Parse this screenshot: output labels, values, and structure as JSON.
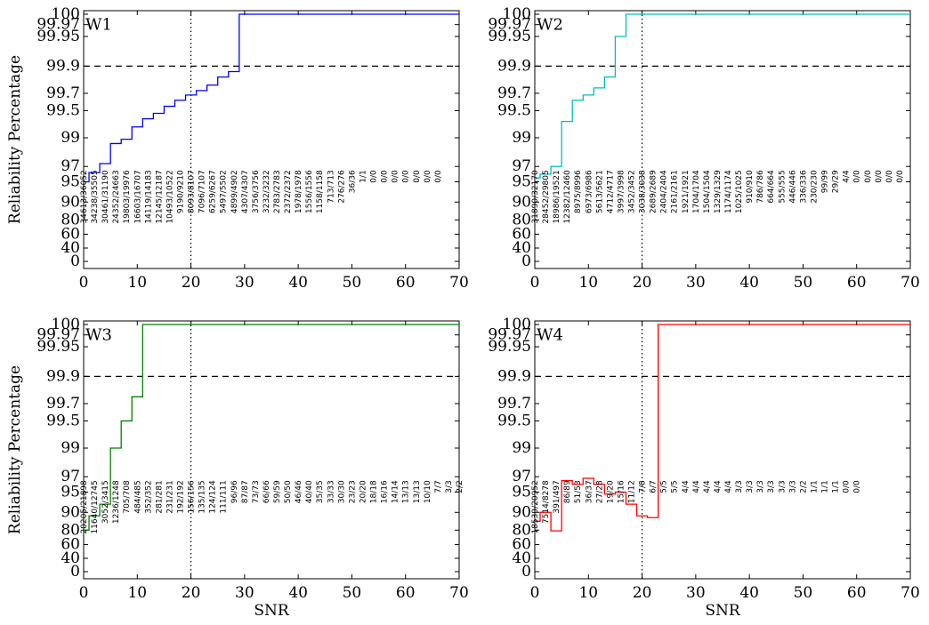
{
  "figure": {
    "ylabel": "Reliability Percentage",
    "xlabel": "SNR"
  },
  "chart_data": [
    {
      "type": "line",
      "title": "W1",
      "color": "#0000ff",
      "xlabel": "",
      "ylabel": "Reliability Percentage",
      "xlim": [
        0,
        70
      ],
      "xticks": [
        "0",
        "10",
        "20",
        "30",
        "40",
        "50",
        "60",
        "70"
      ],
      "yticks": [
        "0",
        "40",
        "60",
        "80",
        "90",
        "95",
        "97",
        "99",
        "99.5",
        "99.7",
        "99.9",
        "99.95",
        "99.97",
        "100"
      ],
      "threshold_y": 99.9,
      "vline_x": 20,
      "steps": [
        [
          0,
          95
        ],
        [
          1,
          96.2
        ],
        [
          3,
          97.2
        ],
        [
          5,
          98.6
        ],
        [
          7,
          98.9
        ],
        [
          9,
          99.2
        ],
        [
          11,
          99.35
        ],
        [
          13,
          99.45
        ],
        [
          15,
          99.55
        ],
        [
          17,
          99.62
        ],
        [
          19,
          99.68
        ],
        [
          21,
          99.72
        ],
        [
          23,
          99.76
        ],
        [
          25,
          99.82
        ],
        [
          27,
          99.86
        ],
        [
          29,
          100
        ],
        [
          70,
          100
        ]
      ],
      "counts": [
        "34613/36052",
        "34238/35505",
        "30461/31190",
        "24352/24663",
        "19803/19976",
        "16603/16707",
        "14119/14183",
        "12145/12187",
        "10493/10522",
        "9190/9210",
        "8093/8107",
        "7096/7107",
        "6259/6267",
        "5497/5502",
        "4899/4902",
        "4307/4307",
        "3756/3756",
        "3232/3232",
        "2783/2783",
        "2372/2372",
        "1978/1978",
        "1556/1556",
        "1158/1158",
        "713/713",
        "276/276",
        "36/36",
        "1/1",
        "0/0",
        "0/0",
        "0/0",
        "0/0",
        "0/0",
        "0/0",
        "0/0"
      ]
    },
    {
      "type": "line",
      "title": "W2",
      "color": "#00bfbf",
      "xlabel": "",
      "ylabel": "",
      "xlim": [
        0,
        70
      ],
      "xticks": [
        "0",
        "10",
        "20",
        "30",
        "40",
        "50",
        "60",
        "70"
      ],
      "yticks": [
        "0",
        "40",
        "60",
        "80",
        "90",
        "95",
        "97",
        "99",
        "99.5",
        "99.7",
        "99.9",
        "99.95",
        "99.97",
        "100"
      ],
      "threshold_y": 99.9,
      "vline_x": 20,
      "steps": [
        [
          0,
          95.5
        ],
        [
          1,
          96
        ],
        [
          3,
          97
        ],
        [
          5,
          99.3
        ],
        [
          7,
          99.62
        ],
        [
          9,
          99.68
        ],
        [
          11,
          99.74
        ],
        [
          13,
          99.82
        ],
        [
          15,
          99.95
        ],
        [
          17,
          100
        ],
        [
          70,
          100
        ]
      ],
      "counts": [
        "31890/32170",
        "28452/29805",
        "18986/19521",
        "12382/12460",
        "8975/8996",
        "6973/6986",
        "5613/5621",
        "4712/4717",
        "3997/3998",
        "3452/3452",
        "3038/3038",
        "2689/2689",
        "2404/2404",
        "2161/2161",
        "1921/1921",
        "1704/1704",
        "1504/1504",
        "1329/1329",
        "1174/1174",
        "1025/1025",
        "910/910",
        "786/786",
        "664/664",
        "555/555",
        "446/446",
        "336/336",
        "230/230",
        "99/99",
        "29/29",
        "4/4",
        "0/0",
        "0/0",
        "0/0",
        "0/0",
        "0/0"
      ]
    },
    {
      "type": "line",
      "title": "W3",
      "color": "#008000",
      "xlabel": "SNR",
      "ylabel": "Reliability Percentage",
      "xlim": [
        0,
        70
      ],
      "xticks": [
        "0",
        "10",
        "20",
        "30",
        "40",
        "50",
        "60",
        "70"
      ],
      "yticks": [
        "0",
        "40",
        "60",
        "80",
        "90",
        "95",
        "97",
        "99",
        "99.5",
        "99.7",
        "99.9",
        "99.95",
        "99.97",
        "100"
      ],
      "threshold_y": 99.9,
      "vline_x": 20,
      "steps": [
        [
          0,
          80
        ],
        [
          1,
          88
        ],
        [
          3,
          92
        ],
        [
          5,
          99
        ],
        [
          7,
          99.5
        ],
        [
          9,
          99.75
        ],
        [
          11,
          100
        ],
        [
          70,
          100
        ]
      ],
      "counts": [
        "20205/21898",
        "11640/12745",
        "3052/3415",
        "1236/1248",
        "705/708",
        "484/485",
        "352/352",
        "281/281",
        "231/231",
        "192/192",
        "156/156",
        "135/135",
        "124/124",
        "111/111",
        "96/96",
        "87/87",
        "73/73",
        "66/66",
        "59/59",
        "50/50",
        "46/46",
        "40/40",
        "35/35",
        "33/33",
        "30/30",
        "23/23",
        "20/20",
        "18/18",
        "16/16",
        "14/14",
        "13/13",
        "13/13",
        "10/10",
        "7/7",
        "3/3",
        "2/2"
      ]
    },
    {
      "type": "line",
      "title": "W4",
      "color": "#ff0000",
      "xlabel": "SNR",
      "ylabel": "",
      "xlim": [
        0,
        70
      ],
      "xticks": [
        "0",
        "10",
        "20",
        "30",
        "40",
        "50",
        "60",
        "70"
      ],
      "yticks": [
        "0",
        "40",
        "60",
        "80",
        "90",
        "95",
        "97",
        "99",
        "99.5",
        "99.7",
        "99.9",
        "99.95",
        "99.97",
        "100"
      ],
      "threshold_y": 99.9,
      "vline_x": 20,
      "steps": [
        [
          0,
          85
        ],
        [
          1,
          90
        ],
        [
          3,
          79
        ],
        [
          5,
          96.5
        ],
        [
          7,
          96
        ],
        [
          9,
          96.8
        ],
        [
          11,
          96
        ],
        [
          13,
          94.5
        ],
        [
          15,
          95
        ],
        [
          17,
          92
        ],
        [
          19,
          88
        ],
        [
          21,
          87
        ],
        [
          23,
          100
        ],
        [
          70,
          100
        ]
      ],
      "counts": [
        "18539/20952",
        "7514/8278",
        "391/497",
        "86/89",
        "51/53",
        "36/37",
        "27/28",
        "19/20",
        "15/16",
        "11/12",
        "7/8",
        "6/7",
        "5/5",
        "5/5",
        "4/4",
        "4/4",
        "4/4",
        "4/4",
        "4/4",
        "3/3",
        "3/3",
        "3/3",
        "3/3",
        "3/3",
        "3/3",
        "2/2",
        "1/1",
        "1/1",
        "1/1",
        "0/0",
        "0/0"
      ]
    }
  ]
}
